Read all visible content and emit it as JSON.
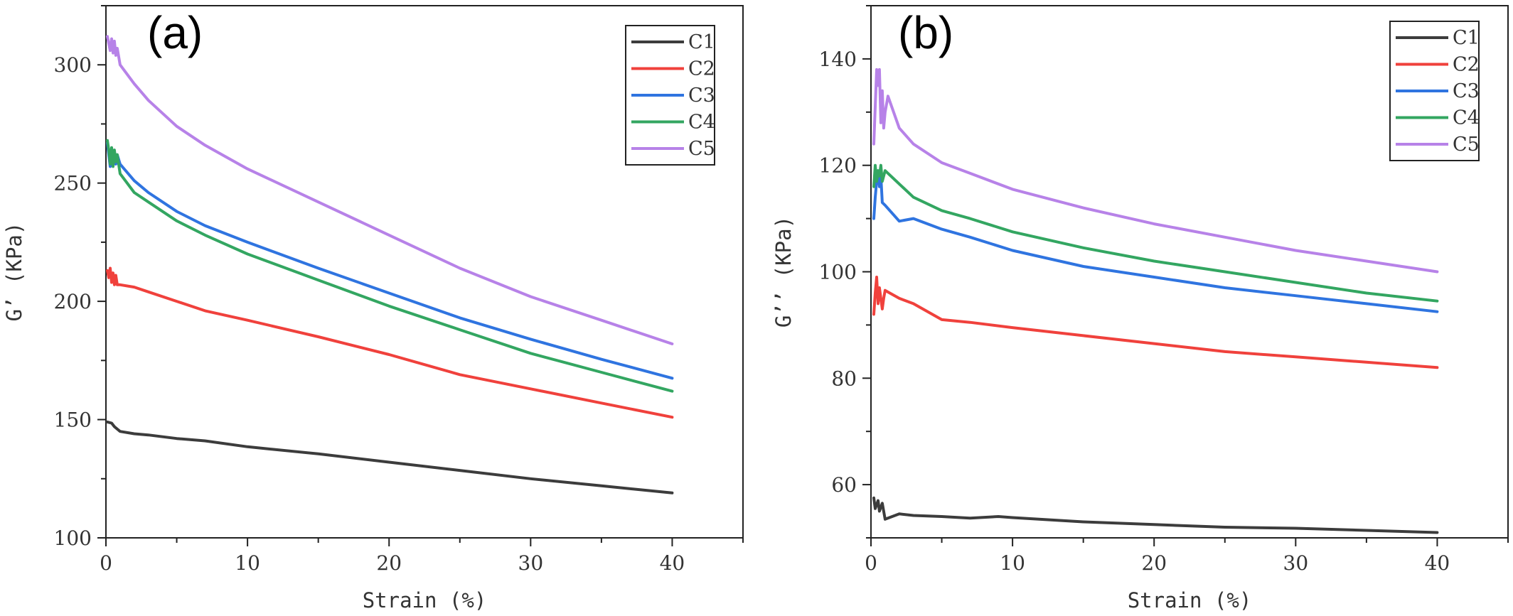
{
  "colors": {
    "C1": "#3c3c3c",
    "C2": "#f0413c",
    "C3": "#2f74e0",
    "C4": "#33a661",
    "C5": "#b782e8"
  },
  "chart_data": [
    {
      "type": "line",
      "panel_label": "(a)",
      "title": "",
      "xlabel": "Strain (%)",
      "ylabel": "G’ (KPa)",
      "xlim": [
        0,
        45
      ],
      "ylim": [
        100,
        325
      ],
      "xticks": [
        0,
        10,
        20,
        30,
        40
      ],
      "yticks": [
        100,
        150,
        200,
        250,
        300
      ],
      "legend_position": "top-right",
      "grid": false,
      "series": [
        {
          "name": "C1",
          "x": [
            0.1,
            0.4,
            0.6,
            0.8,
            1,
            2,
            3,
            5,
            7,
            10,
            15,
            20,
            25,
            30,
            35,
            40
          ],
          "y": [
            149,
            148.5,
            147,
            146,
            145,
            144,
            143.5,
            142,
            141,
            138.5,
            135.5,
            132,
            128.5,
            125,
            122,
            119
          ]
        },
        {
          "name": "C2",
          "x": [
            0.1,
            0.2,
            0.3,
            0.4,
            0.5,
            0.6,
            0.7,
            0.8,
            1,
            2,
            3,
            5,
            7,
            10,
            15,
            20,
            25,
            30,
            35,
            40
          ],
          "y": [
            213,
            210,
            214,
            208,
            212,
            207,
            211,
            207,
            207,
            206,
            204,
            200,
            196,
            192,
            185,
            177.5,
            169,
            163,
            157,
            151
          ]
        },
        {
          "name": "C3",
          "x": [
            0.1,
            0.2,
            0.3,
            0.4,
            0.5,
            0.6,
            0.7,
            0.8,
            1,
            2,
            3,
            5,
            7,
            10,
            15,
            20,
            25,
            30,
            35,
            40
          ],
          "y": [
            267,
            262,
            257,
            264,
            259,
            263,
            258,
            262,
            258,
            251,
            246,
            238,
            232,
            225,
            214,
            203.5,
            193,
            184,
            175.5,
            167.5
          ]
        },
        {
          "name": "C4",
          "x": [
            0.1,
            0.2,
            0.3,
            0.4,
            0.5,
            0.6,
            0.7,
            0.8,
            1,
            2,
            3,
            5,
            7,
            10,
            15,
            20,
            25,
            30,
            35,
            40
          ],
          "y": [
            268,
            264,
            258,
            265,
            257,
            264,
            259,
            262,
            254,
            246,
            242,
            234,
            228,
            220,
            209,
            198,
            188,
            178,
            170,
            162
          ]
        },
        {
          "name": "C5",
          "x": [
            0.1,
            0.2,
            0.3,
            0.4,
            0.5,
            0.6,
            0.7,
            0.8,
            1,
            2,
            3,
            5,
            7,
            10,
            15,
            20,
            25,
            30,
            35,
            40
          ],
          "y": [
            312,
            309,
            306,
            311,
            305,
            310,
            304,
            307,
            300,
            292,
            285,
            274,
            266,
            256,
            242,
            228,
            214,
            202,
            192,
            182
          ]
        }
      ]
    },
    {
      "type": "line",
      "panel_label": "(b)",
      "title": "",
      "xlabel": "Strain (%)",
      "ylabel": "G’’ (KPa)",
      "xlim": [
        0,
        45
      ],
      "ylim": [
        50,
        150
      ],
      "xticks": [
        0,
        10,
        20,
        30,
        40
      ],
      "yticks": [
        60,
        80,
        100,
        120,
        140
      ],
      "legend_position": "top-right",
      "grid": false,
      "series": [
        {
          "name": "C1",
          "x": [
            0.2,
            0.3,
            0.5,
            0.6,
            0.8,
            1,
            2,
            3,
            5,
            7,
            9,
            10,
            15,
            20,
            25,
            30,
            35,
            40
          ],
          "y": [
            57.5,
            55.5,
            57,
            55,
            56.5,
            53.5,
            54.5,
            54.2,
            54,
            53.7,
            54,
            53.8,
            53,
            52.5,
            52,
            51.8,
            51.4,
            51
          ]
        },
        {
          "name": "C2",
          "x": [
            0.2,
            0.3,
            0.4,
            0.5,
            0.6,
            0.7,
            0.8,
            0.9,
            1,
            2,
            3,
            5,
            7,
            10,
            15,
            20,
            25,
            30,
            35,
            40
          ],
          "y": [
            92,
            96,
            99,
            94,
            97,
            95,
            93,
            95,
            96.5,
            95,
            94,
            91,
            90.5,
            89.5,
            88,
            86.5,
            85,
            84,
            83,
            82
          ]
        },
        {
          "name": "C3",
          "x": [
            0.2,
            0.3,
            0.4,
            0.5,
            0.6,
            0.7,
            0.8,
            1,
            2,
            3,
            5,
            7,
            10,
            15,
            20,
            25,
            30,
            35,
            40
          ],
          "y": [
            110,
            114,
            117,
            119,
            116,
            118,
            113,
            112.5,
            109.5,
            110,
            108,
            106.5,
            104,
            101,
            99,
            97,
            95.5,
            94,
            92.5
          ]
        },
        {
          "name": "C4",
          "x": [
            0.2,
            0.3,
            0.4,
            0.5,
            0.6,
            0.7,
            0.8,
            1,
            2,
            3,
            5,
            7,
            10,
            15,
            20,
            25,
            30,
            35,
            40
          ],
          "y": [
            116,
            120,
            117,
            119,
            118,
            120,
            117,
            119,
            116.5,
            114,
            111.5,
            110,
            107.5,
            104.5,
            102,
            100,
            98,
            96,
            94.5
          ]
        },
        {
          "name": "C5",
          "x": [
            0.2,
            0.3,
            0.4,
            0.5,
            0.6,
            0.7,
            0.8,
            0.9,
            1,
            1.2,
            2,
            3,
            5,
            7,
            10,
            15,
            20,
            25,
            30,
            35,
            40
          ],
          "y": [
            124,
            131,
            138,
            135,
            138,
            128,
            134,
            127,
            130,
            133,
            127,
            124,
            120.5,
            118.5,
            115.5,
            112,
            109,
            106.5,
            104,
            102,
            100
          ]
        }
      ]
    }
  ]
}
